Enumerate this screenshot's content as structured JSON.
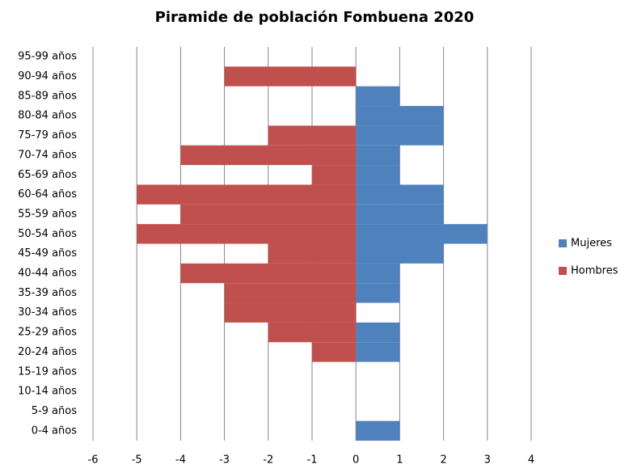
{
  "chart_data": {
    "type": "bar",
    "orientation": "horizontal",
    "title": "Piramide de población Fombuena 2020",
    "categories": [
      "0-4 años",
      "5-9 años",
      "10-14 años",
      "15-19 años",
      "20-24 años",
      "25-29 años",
      "30-34 años",
      "35-39 años",
      "40-44 años",
      "45-49 años",
      "50-54 años",
      "55-59 años",
      "60-64 años",
      "65-69 años",
      "70-74 años",
      "75-79 años",
      "80-84 años",
      "85-89 años",
      "90-94 años",
      "95-99 años"
    ],
    "series": [
      {
        "name": "Mujeres",
        "color": "#4f81bd",
        "values": [
          1,
          0,
          0,
          0,
          1,
          1,
          0,
          1,
          1,
          2,
          3,
          2,
          2,
          1,
          1,
          2,
          2,
          1,
          0,
          0
        ]
      },
      {
        "name": "Hombres",
        "color": "#c0504d",
        "values": [
          0,
          0,
          0,
          0,
          -1,
          -2,
          -3,
          -3,
          -4,
          -2,
          -5,
          -4,
          -5,
          -1,
          -4,
          -2,
          0,
          0,
          -3,
          0
        ]
      }
    ],
    "xlim": [
      -6,
      4
    ],
    "xticks": [
      -6,
      -5,
      -4,
      -3,
      -2,
      -1,
      0,
      1,
      2,
      3,
      4
    ],
    "grid": true,
    "legend": "right"
  }
}
